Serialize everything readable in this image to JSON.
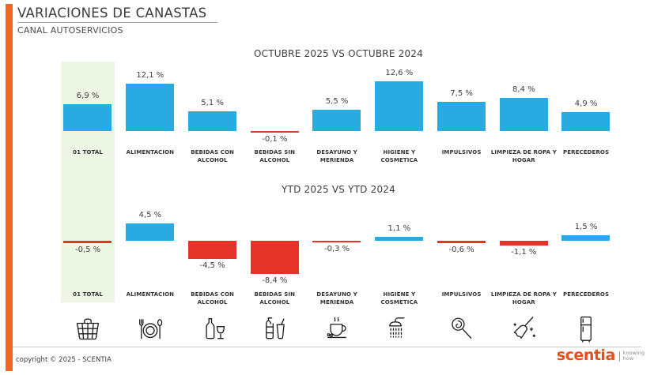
{
  "colors": {
    "accent_orange": "#F26522",
    "bar_blue": "#29ABE2",
    "bar_red": "#E63329",
    "highlight_green": "#EDF6E5",
    "logo_orange": "#E94E1B"
  },
  "header": {
    "title": "VARIACIONES DE CANASTAS",
    "subtitle": "CANAL AUTOSERVICIOS"
  },
  "categories": [
    {
      "label": "01 TOTAL",
      "icon": "basket-icon"
    },
    {
      "label": "ALIMENTACION",
      "icon": "plate-cutlery-icon"
    },
    {
      "label": "BEBIDAS CON ALCOHOL",
      "icon": "bottle-wine-icon"
    },
    {
      "label": "BEBIDAS SIN ALCOHOL",
      "icon": "soda-bottle-icon"
    },
    {
      "label": "DESAYUNO Y MERIENDA",
      "icon": "coffee-cup-icon"
    },
    {
      "label": "HIGIENE Y COSMETICA",
      "icon": "shower-icon"
    },
    {
      "label": "IMPULSIVOS",
      "icon": "lollipop-icon"
    },
    {
      "label": "LIMPIEZA DE ROPA Y HOGAR",
      "icon": "broom-icon"
    },
    {
      "label": "PERECEDEROS",
      "icon": "fridge-icon"
    }
  ],
  "chart_data": [
    {
      "type": "bar",
      "title": "OCTUBRE 2025 VS OCTUBRE 2024",
      "categories": [
        "01 TOTAL",
        "ALIMENTACION",
        "BEBIDAS CON ALCOHOL",
        "BEBIDAS SIN ALCOHOL",
        "DESAYUNO Y MERIENDA",
        "HIGIENE Y COSMETICA",
        "IMPULSIVOS",
        "LIMPIEZA DE ROPA Y HOGAR",
        "PERECEDEROS"
      ],
      "values": [
        6.9,
        12.1,
        5.1,
        -0.1,
        5.5,
        12.6,
        7.5,
        8.4,
        4.9
      ],
      "value_labels": [
        "6,9 %",
        "12,1 %",
        "5,1 %",
        "-0,1 %",
        "5,5 %",
        "12,6 %",
        "7,5 %",
        "8,4 %",
        "4,9 %"
      ],
      "positive_color": "#29ABE2",
      "negative_color": "#E63329",
      "highlight_column": 0,
      "value_suffix": "%",
      "decimal_separator": ",",
      "grid": false,
      "legend": false
    },
    {
      "type": "bar",
      "title": "YTD 2025 VS YTD 2024",
      "categories": [
        "01 TOTAL",
        "ALIMENTACION",
        "BEBIDAS CON ALCOHOL",
        "BEBIDAS SIN ALCOHOL",
        "DESAYUNO Y MERIENDA",
        "HIGIENE Y COSMETICA",
        "IMPULSIVOS",
        "LIMPIEZA DE ROPA Y HOGAR",
        "PERECEDEROS"
      ],
      "values": [
        -0.5,
        4.5,
        -4.5,
        -8.4,
        -0.3,
        1.1,
        -0.6,
        -1.1,
        1.5
      ],
      "value_labels": [
        "-0,5 %",
        "4,5 %",
        "-4,5 %",
        "-8,4 %",
        "-0,3 %",
        "1,1 %",
        "-0,6 %",
        "-1,1 %",
        "1,5 %"
      ],
      "positive_color": "#29ABE2",
      "negative_color": "#E63329",
      "highlight_column": 0,
      "value_suffix": "%",
      "decimal_separator": ",",
      "grid": false,
      "legend": false
    }
  ],
  "footer": {
    "copyright": "copyright © 2025 - SCENTIA",
    "logo_text": "scentia",
    "tagline_line1": "knowing",
    "tagline_line2": "how"
  }
}
